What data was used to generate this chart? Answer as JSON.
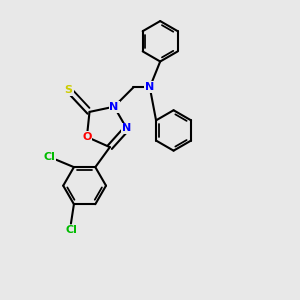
{
  "bg_color": "#e8e8e8",
  "atom_colors": {
    "S": "#cccc00",
    "O": "#ff0000",
    "N": "#0000ff",
    "Cl": "#00bb00",
    "C": "#000000"
  },
  "bond_color": "#000000",
  "bond_width": 1.5,
  "font_size_atom": 8,
  "fig_w": 3.0,
  "fig_h": 3.0,
  "dpi": 100
}
